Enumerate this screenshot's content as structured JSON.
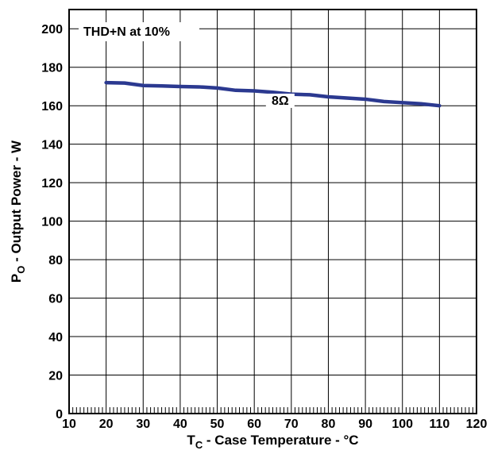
{
  "chart_data": {
    "type": "line",
    "x": [
      20,
      25,
      30,
      35,
      40,
      45,
      50,
      55,
      60,
      65,
      70,
      75,
      80,
      85,
      90,
      95,
      100,
      105,
      110
    ],
    "series": [
      {
        "name": "8Ω",
        "color": "#2b3990",
        "values": [
          172,
          171.8,
          170.5,
          170.3,
          170,
          169.8,
          169.2,
          168,
          167.7,
          167,
          166,
          165.7,
          164.6,
          164,
          163.4,
          162.2,
          161.6,
          161,
          160
        ]
      }
    ],
    "annotation": "THD+N at 10%",
    "xlabel_main": "T",
    "xlabel_sub": "C",
    "xlabel_rest": " - Case Temperature - °C",
    "ylabel_main": "P",
    "ylabel_sub": "O",
    "ylabel_rest": " - Output Power - W",
    "xlim": [
      10,
      120
    ],
    "ylim": [
      0,
      210
    ],
    "x_ticks": [
      10,
      20,
      30,
      40,
      50,
      60,
      70,
      80,
      90,
      100,
      110,
      120
    ],
    "y_ticks": [
      0,
      20,
      40,
      60,
      80,
      100,
      120,
      140,
      160,
      180,
      200
    ],
    "grid": true,
    "minor_ticks_x": true
  }
}
